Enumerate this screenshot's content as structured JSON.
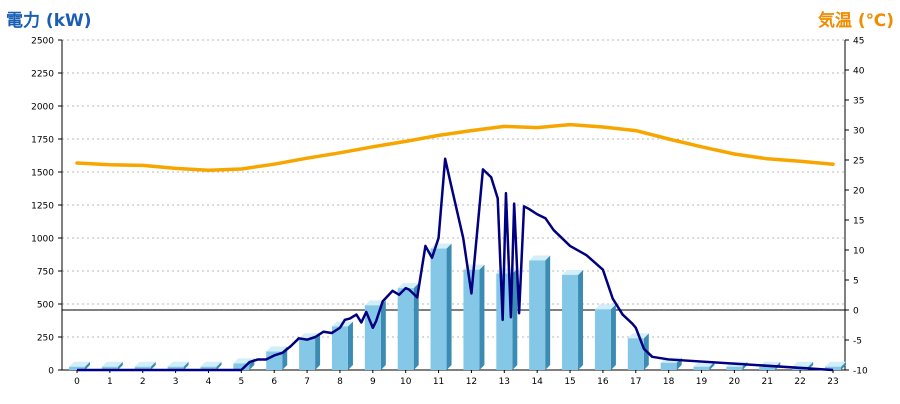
{
  "chart_data": {
    "type": "bar+line",
    "left_axis_label": "電力 (kW)",
    "right_axis_label": "気温 (℃)",
    "x_categories": [
      "0",
      "1",
      "2",
      "3",
      "4",
      "5",
      "6",
      "7",
      "8",
      "9",
      "10",
      "11",
      "12",
      "13",
      "14",
      "15",
      "16",
      "17",
      "18",
      "19",
      "20",
      "21",
      "22",
      "23"
    ],
    "left_ylim": [
      0,
      2500
    ],
    "left_ticks": [
      "0",
      "250",
      "500",
      "750",
      "1000",
      "1250",
      "1500",
      "1750",
      "2000",
      "2250",
      "2500"
    ],
    "right_ylim": [
      -10,
      45
    ],
    "right_ticks": [
      "-10",
      "-5",
      "0",
      "5",
      "10",
      "15",
      "20",
      "25",
      "30",
      "35",
      "40",
      "45"
    ],
    "grid": "horizontal dotted",
    "bars_power_hourly": [
      25,
      25,
      25,
      25,
      25,
      50,
      140,
      240,
      330,
      490,
      620,
      920,
      760,
      730,
      830,
      720,
      460,
      240,
      55,
      25,
      25,
      25,
      25,
      25
    ],
    "line_power_fine": {
      "x": [
        0,
        5,
        5.25,
        5.5,
        5.75,
        6.0,
        6.25,
        6.5,
        6.75,
        7.0,
        7.25,
        7.5,
        7.75,
        8.0,
        8.15,
        8.3,
        8.5,
        8.65,
        8.8,
        9.0,
        9.1,
        9.3,
        9.6,
        9.8,
        10.0,
        10.1,
        10.35,
        10.6,
        10.8,
        11.0,
        11.2,
        11.4,
        11.75,
        12.0,
        12.35,
        12.6,
        12.8,
        12.95,
        13.05,
        13.2,
        13.3,
        13.45,
        13.6,
        13.75,
        14.0,
        14.25,
        14.5,
        15.0,
        15.5,
        16.0,
        16.3,
        16.6,
        16.9,
        17.0,
        17.25,
        17.5,
        18.0,
        23.0
      ],
      "values": [
        0,
        0,
        60,
        80,
        80,
        110,
        130,
        180,
        240,
        230,
        250,
        290,
        280,
        320,
        380,
        390,
        420,
        360,
        440,
        320,
        370,
        520,
        600,
        570,
        620,
        610,
        550,
        940,
        850,
        1000,
        1600,
        1380,
        1000,
        580,
        1520,
        1460,
        1300,
        380,
        1340,
        400,
        1260,
        430,
        1240,
        1220,
        1180,
        1150,
        1060,
        940,
        870,
        760,
        540,
        420,
        350,
        320,
        160,
        100,
        80,
        0
      ]
    },
    "line_temperature_hourly": [
      24.5,
      24.2,
      24.1,
      23.6,
      23.3,
      23.5,
      24.3,
      25.3,
      26.2,
      27.2,
      28.1,
      29.1,
      29.9,
      30.6,
      30.4,
      30.9,
      30.5,
      29.9,
      28.5,
      27.2,
      26.0,
      25.2,
      24.8,
      24.3
    ],
    "colors": {
      "left_title": "#1a5fb4",
      "right_title": "#f08c00",
      "bar_front": "#85c7e6",
      "bar_top": "#d2eef9",
      "bar_side": "#3c8bb3",
      "power_line": "#000080",
      "temp_line": "#f7a600",
      "grid": "#b8b8b8",
      "zero_line": "#000000"
    }
  }
}
